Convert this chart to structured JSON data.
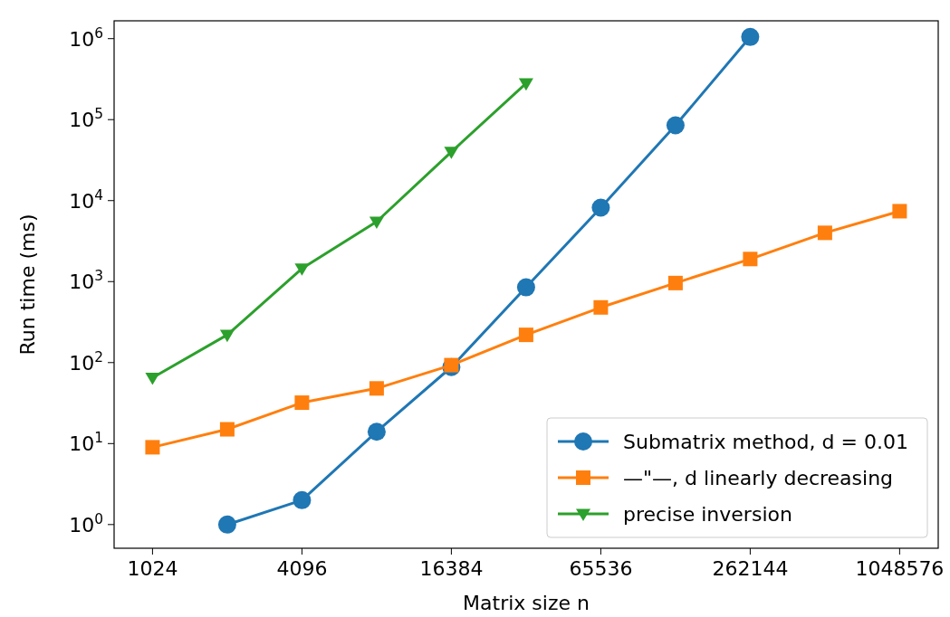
{
  "chart_data": {
    "type": "line",
    "xlabel": "Matrix size n",
    "ylabel": "Run time (ms)",
    "log": "xy",
    "legend": "bottom right",
    "grid": false,
    "xlim": [
      717,
      1500000
    ],
    "ylim": [
      0.51,
      1660000
    ],
    "xticks": [
      1024,
      4096,
      16384,
      65536,
      262144,
      1048576
    ],
    "yticks": [
      {
        "value": 1,
        "label": "10$^{0}$"
      },
      {
        "value": 10,
        "label": "10$^{1}$"
      },
      {
        "value": 100,
        "label": "10$^{2}$"
      },
      {
        "value": 1000,
        "label": "10$^{3}$"
      },
      {
        "value": 10000,
        "label": "10$^{4}$"
      },
      {
        "value": 100000,
        "label": "10$^{5}$"
      },
      {
        "value": 1000000,
        "label": "10$^{6}$"
      }
    ],
    "series": [
      {
        "name": "Submatrix method, d = 0.01",
        "color": "#1f77b4",
        "marker": "circle",
        "x": [
          2048,
          4096,
          8192,
          16384,
          32768,
          65536,
          131072,
          262144
        ],
        "values": [
          1,
          2,
          14,
          88,
          850,
          8200,
          85000,
          1050000
        ]
      },
      {
        "name": "—\"—, d linearly decreasing",
        "color": "#ff7f0e",
        "marker": "square",
        "x": [
          1024,
          2048,
          4096,
          8192,
          16384,
          32768,
          65536,
          131072,
          262144,
          524288,
          1048576
        ],
        "values": [
          9,
          15,
          32,
          48,
          93,
          220,
          480,
          960,
          1900,
          4000,
          7400
        ]
      },
      {
        "name": "precise inversion",
        "color": "#2ca02c",
        "marker": "triangle",
        "x": [
          1024,
          2048,
          4096,
          8192,
          16384,
          32768
        ],
        "values": [
          65,
          220,
          1450,
          5500,
          40000,
          280000
        ]
      }
    ]
  }
}
